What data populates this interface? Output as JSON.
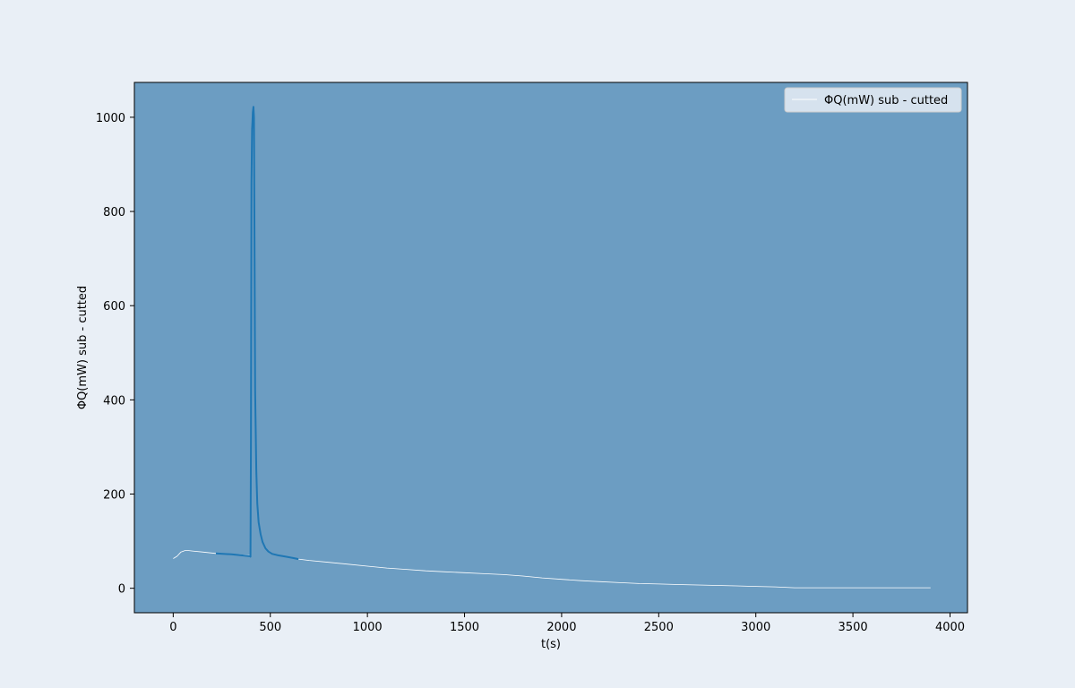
{
  "chart_data": {
    "type": "line",
    "title": "",
    "xlabel": "t(s)",
    "ylabel": "ΦQ(mW) sub - cutted",
    "xlim": [
      -200,
      4090
    ],
    "ylim": [
      -52,
      1074
    ],
    "xticks": [
      0,
      500,
      1000,
      1500,
      2000,
      2500,
      3000,
      3500,
      4000
    ],
    "yticks": [
      0,
      200,
      400,
      600,
      800,
      1000
    ],
    "grid": false,
    "legend_position": "top-right",
    "colors": {
      "figure_bg": "#e9eff6",
      "axes_bg": "#6c9dc2",
      "full_series": "#ffffff",
      "highlight_series": "#1f77b4",
      "legend_bg": "#e9eff6"
    },
    "series": [
      {
        "name": "ΦQ(mW) sub - cutted",
        "style": "thin-white",
        "x": [
          0,
          20,
          40,
          60,
          80,
          100,
          150,
          220,
          300,
          398
        ],
        "y": [
          63,
          68,
          77,
          80,
          80,
          79,
          77,
          74,
          72,
          70
        ]
      },
      {
        "name": "",
        "style": "thick-blue",
        "x": [
          220,
          300,
          395,
          398,
          400,
          403,
          406,
          408,
          410,
          413,
          416,
          419,
          422,
          428,
          433,
          440,
          450,
          460,
          475,
          490,
          510,
          540,
          580,
          620,
          645
        ],
        "y": [
          74,
          72,
          68,
          67,
          300,
          860,
          975,
          990,
          1010,
          1022,
          1000,
          700,
          420,
          250,
          180,
          140,
          115,
          98,
          85,
          78,
          73,
          70,
          67,
          64,
          62
        ]
      },
      {
        "name": "",
        "style": "thin-white",
        "x": [
          645,
          700,
          800,
          900,
          1000,
          1100,
          1200,
          1300,
          1400,
          1500,
          1600,
          1700,
          1800,
          1900,
          2000,
          2100,
          2200,
          2300,
          2400,
          2500,
          2600,
          2700,
          2800,
          2900,
          3000,
          3100,
          3200,
          3300,
          3400,
          3500,
          3600,
          3700,
          3800,
          3900
        ],
        "y": [
          62,
          59,
          55,
          51,
          47,
          43,
          40,
          37,
          35,
          33,
          31,
          29,
          26,
          22,
          19,
          16,
          14,
          12,
          10,
          9,
          8,
          7,
          6,
          5,
          4,
          3,
          1,
          1,
          1,
          1,
          1,
          1,
          1,
          1
        ]
      }
    ]
  }
}
